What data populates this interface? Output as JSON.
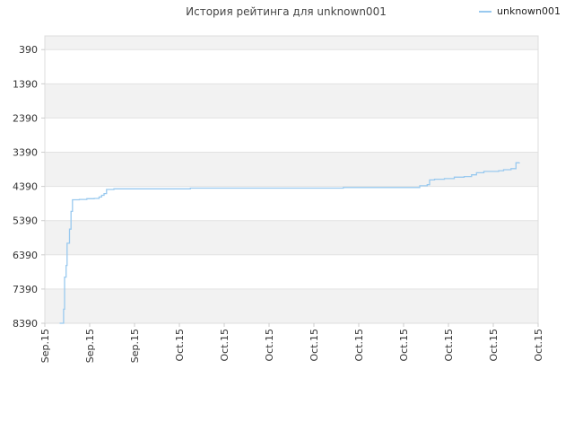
{
  "chart_data": {
    "type": "line",
    "title": "История рейтинга для unknown001",
    "xlabel": "",
    "ylabel": "",
    "y_inverted": true,
    "ylim": [
      8390,
      -10
    ],
    "yticks": [
      390,
      1390,
      2390,
      3390,
      4390,
      5390,
      6390,
      7390,
      8390
    ],
    "xticks": [
      "Sep.15",
      "Sep.15",
      "Sep.15",
      "Oct.15",
      "Oct.15",
      "Oct.15",
      "Oct.15",
      "Oct.15",
      "Oct.15",
      "Oct.15",
      "Oct.15",
      "Oct.15"
    ],
    "grid": true,
    "legend": "top-right",
    "series": [
      {
        "name": "unknown001",
        "color": "#99c9ef",
        "points": [
          [
            0.03,
            8390
          ],
          [
            0.037,
            8390
          ],
          [
            0.038,
            7980
          ],
          [
            0.04,
            7040
          ],
          [
            0.043,
            6700
          ],
          [
            0.045,
            6050
          ],
          [
            0.05,
            5640
          ],
          [
            0.053,
            5120
          ],
          [
            0.056,
            4780
          ],
          [
            0.07,
            4770
          ],
          [
            0.085,
            4750
          ],
          [
            0.1,
            4740
          ],
          [
            0.11,
            4700
          ],
          [
            0.115,
            4650
          ],
          [
            0.12,
            4600
          ],
          [
            0.125,
            4480
          ],
          [
            0.14,
            4460
          ],
          [
            0.2,
            4460
          ],
          [
            0.25,
            4460
          ],
          [
            0.29,
            4460
          ],
          [
            0.295,
            4440
          ],
          [
            0.33,
            4440
          ],
          [
            0.4,
            4440
          ],
          [
            0.5,
            4440
          ],
          [
            0.6,
            4440
          ],
          [
            0.605,
            4420
          ],
          [
            0.65,
            4420
          ],
          [
            0.7,
            4420
          ],
          [
            0.755,
            4420
          ],
          [
            0.76,
            4370
          ],
          [
            0.775,
            4340
          ],
          [
            0.78,
            4200
          ],
          [
            0.79,
            4180
          ],
          [
            0.81,
            4160
          ],
          [
            0.83,
            4120
          ],
          [
            0.85,
            4100
          ],
          [
            0.865,
            4050
          ],
          [
            0.875,
            3990
          ],
          [
            0.89,
            3950
          ],
          [
            0.92,
            3930
          ],
          [
            0.93,
            3900
          ],
          [
            0.945,
            3870
          ],
          [
            0.955,
            3700
          ],
          [
            0.962,
            3690
          ]
        ]
      }
    ]
  }
}
